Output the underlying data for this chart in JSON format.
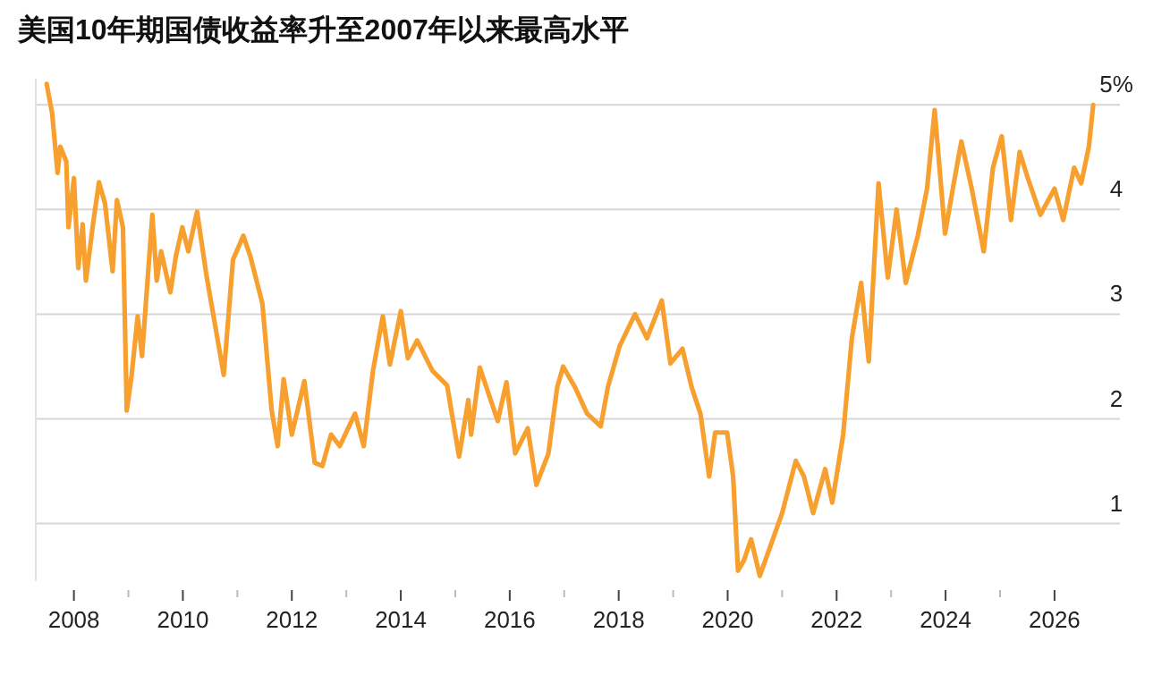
{
  "chart_data": {
    "type": "line",
    "title": "美国10年期国债收益率升至2007年以来最高水平",
    "x": [
      2007.5,
      2007.6,
      2007.7,
      2007.75,
      2007.86,
      2007.9,
      2008.0,
      2008.08,
      2008.16,
      2008.22,
      2008.35,
      2008.46,
      2008.57,
      2008.71,
      2008.79,
      2008.9,
      2008.97,
      2009.06,
      2009.17,
      2009.25,
      2009.44,
      2009.52,
      2009.6,
      2009.77,
      2009.87,
      2009.99,
      2010.1,
      2010.26,
      2010.43,
      2010.6,
      2010.75,
      2010.92,
      2011.11,
      2011.24,
      2011.46,
      2011.63,
      2011.74,
      2011.85,
      2012.0,
      2012.23,
      2012.42,
      2012.56,
      2012.72,
      2012.88,
      2013.16,
      2013.32,
      2013.49,
      2013.67,
      2013.8,
      2014.0,
      2014.13,
      2014.3,
      2014.58,
      2014.85,
      2015.07,
      2015.24,
      2015.29,
      2015.45,
      2015.78,
      2015.94,
      2016.1,
      2016.33,
      2016.49,
      2016.71,
      2016.87,
      2016.98,
      2017.2,
      2017.42,
      2017.67,
      2017.8,
      2018.02,
      2018.3,
      2018.52,
      2018.79,
      2018.95,
      2019.17,
      2019.34,
      2019.5,
      2019.66,
      2019.77,
      2019.99,
      2020.1,
      2020.19,
      2020.3,
      2020.43,
      2020.59,
      2020.85,
      2021.0,
      2021.25,
      2021.4,
      2021.57,
      2021.79,
      2021.92,
      2022.12,
      2022.28,
      2022.45,
      2022.59,
      2022.77,
      2022.94,
      2023.1,
      2023.27,
      2023.49,
      2023.66,
      2023.8,
      2023.99,
      2024.15,
      2024.29,
      2024.48,
      2024.7,
      2024.87,
      2025.03,
      2025.2,
      2025.36,
      2025.51,
      2025.74,
      2026.0,
      2026.16,
      2026.36,
      2026.49,
      2026.63,
      2026.71
    ],
    "series": [
      {
        "color": "#f7a030",
        "values": [
          5.2,
          4.92,
          4.35,
          4.6,
          4.46,
          3.83,
          4.3,
          3.44,
          3.86,
          3.32,
          3.86,
          4.26,
          4.06,
          3.41,
          4.09,
          3.83,
          2.08,
          2.42,
          2.98,
          2.6,
          3.95,
          3.32,
          3.6,
          3.21,
          3.55,
          3.83,
          3.6,
          3.98,
          3.38,
          2.87,
          2.42,
          3.52,
          3.75,
          3.55,
          3.1,
          2.08,
          1.74,
          2.38,
          1.85,
          2.36,
          1.58,
          1.55,
          1.85,
          1.74,
          2.05,
          1.74,
          2.46,
          2.98,
          2.52,
          3.03,
          2.58,
          2.75,
          2.46,
          2.32,
          1.64,
          2.18,
          1.85,
          2.49,
          1.98,
          2.35,
          1.67,
          1.91,
          1.37,
          1.67,
          2.3,
          2.5,
          2.3,
          2.05,
          1.93,
          2.3,
          2.7,
          3.0,
          2.77,
          3.13,
          2.53,
          2.67,
          2.3,
          2.05,
          1.45,
          1.87,
          1.87,
          1.45,
          0.55,
          0.65,
          0.85,
          0.5,
          0.88,
          1.1,
          1.6,
          1.45,
          1.1,
          1.52,
          1.2,
          1.85,
          2.77,
          3.3,
          2.55,
          4.25,
          3.35,
          4.0,
          3.3,
          3.75,
          4.2,
          4.95,
          3.77,
          4.25,
          4.65,
          4.2,
          3.6,
          4.4,
          4.7,
          3.9,
          4.55,
          4.3,
          3.95,
          4.2,
          3.9,
          4.4,
          4.25,
          4.6,
          5.0
        ]
      }
    ],
    "xlim": [
      2007.3,
      2027.2
    ],
    "xticks": [
      2008,
      {
        "value": 2009,
        "label": null
      },
      2010,
      {
        "value": 2011,
        "label": null
      },
      2012,
      {
        "value": 2013,
        "label": null
      },
      2014,
      {
        "value": 2015,
        "label": null
      },
      2016,
      {
        "value": 2017,
        "label": null
      },
      2018,
      {
        "value": 2019,
        "label": null
      },
      2020,
      {
        "value": 2021,
        "label": null
      },
      2022,
      {
        "value": 2023,
        "label": null
      },
      2024,
      {
        "value": 2025,
        "label": null
      },
      2026
    ],
    "ylim": [
      0.45,
      5.25
    ],
    "yticks": [
      1,
      2,
      3,
      4,
      {
        "value": 5,
        "label": "5%"
      }
    ],
    "grid": "y"
  }
}
